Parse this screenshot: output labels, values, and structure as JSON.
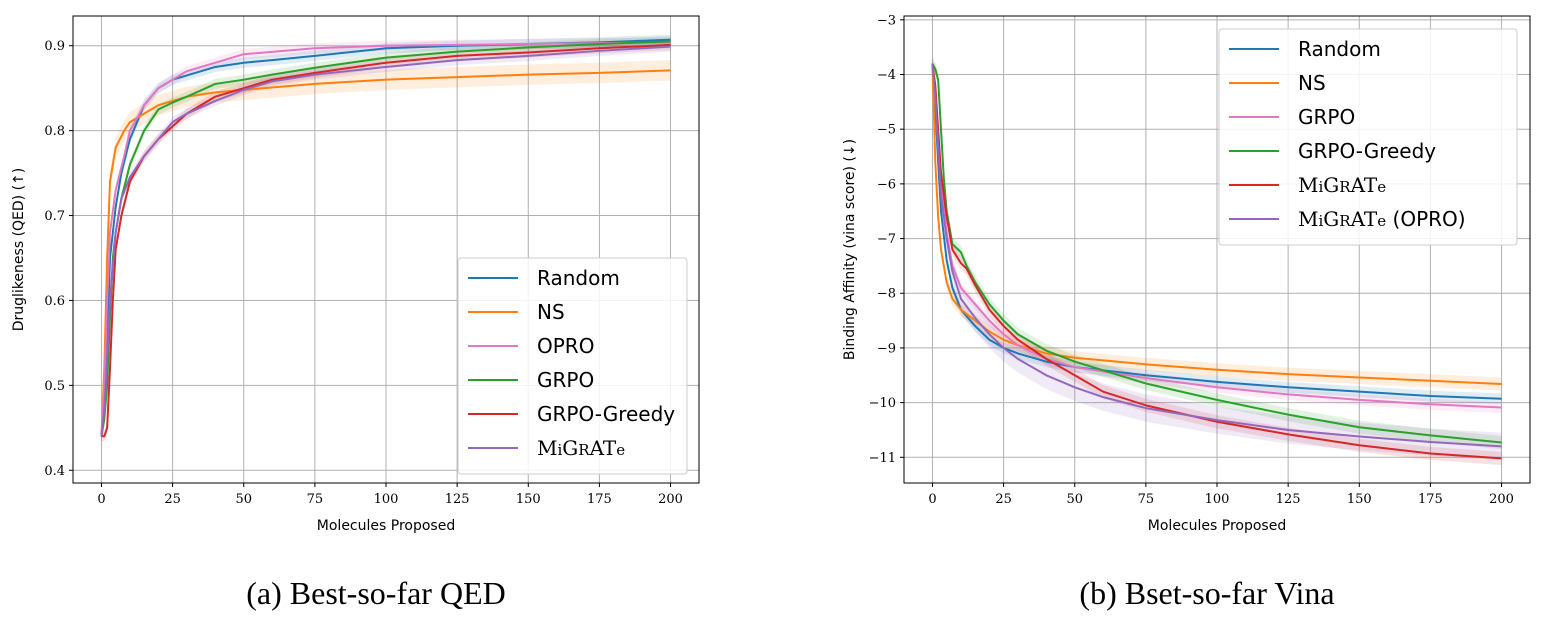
{
  "chart_data": [
    {
      "type": "line",
      "caption": "(a) Best-so-far QED",
      "xlabel": "Molecules Proposed",
      "ylabel": "Druglikeness (QED) (↑)",
      "xlim": [
        -10,
        210
      ],
      "ylim": [
        0.385,
        0.935
      ],
      "xticks": [
        0,
        25,
        50,
        75,
        100,
        125,
        150,
        175,
        200
      ],
      "yticks": [
        0.4,
        0.5,
        0.6,
        0.7,
        0.8,
        0.9
      ],
      "grid": true,
      "legend_position": "lower-right",
      "series": [
        {
          "name": "Random",
          "color": "#1f77b4",
          "band": 0.006,
          "points": [
            [
              0,
              0.44
            ],
            [
              1,
              0.47
            ],
            [
              2,
              0.55
            ],
            [
              3,
              0.65
            ],
            [
              5,
              0.71
            ],
            [
              7,
              0.75
            ],
            [
              10,
              0.79
            ],
            [
              15,
              0.83
            ],
            [
              20,
              0.85
            ],
            [
              25,
              0.86
            ],
            [
              30,
              0.865
            ],
            [
              40,
              0.875
            ],
            [
              50,
              0.88
            ],
            [
              60,
              0.883
            ],
            [
              75,
              0.888
            ],
            [
              100,
              0.897
            ],
            [
              125,
              0.9
            ],
            [
              150,
              0.902
            ],
            [
              175,
              0.904
            ],
            [
              200,
              0.907
            ]
          ]
        },
        {
          "name": "NS",
          "color": "#ff7f0e",
          "band": 0.012,
          "points": [
            [
              0,
              0.44
            ],
            [
              1,
              0.52
            ],
            [
              2,
              0.65
            ],
            [
              3,
              0.74
            ],
            [
              5,
              0.78
            ],
            [
              8,
              0.8
            ],
            [
              10,
              0.81
            ],
            [
              15,
              0.82
            ],
            [
              20,
              0.83
            ],
            [
              25,
              0.835
            ],
            [
              30,
              0.84
            ],
            [
              40,
              0.845
            ],
            [
              50,
              0.848
            ],
            [
              75,
              0.855
            ],
            [
              100,
              0.86
            ],
            [
              125,
              0.863
            ],
            [
              150,
              0.866
            ],
            [
              175,
              0.868
            ],
            [
              200,
              0.871
            ]
          ]
        },
        {
          "name": "OPRO",
          "color": "#e377c2",
          "band": 0.006,
          "points": [
            [
              0,
              0.44
            ],
            [
              1,
              0.5
            ],
            [
              2,
              0.6
            ],
            [
              3,
              0.68
            ],
            [
              5,
              0.73
            ],
            [
              8,
              0.77
            ],
            [
              10,
              0.8
            ],
            [
              15,
              0.83
            ],
            [
              20,
              0.85
            ],
            [
              25,
              0.86
            ],
            [
              30,
              0.87
            ],
            [
              40,
              0.88
            ],
            [
              50,
              0.89
            ],
            [
              75,
              0.897
            ],
            [
              100,
              0.9
            ],
            [
              125,
              0.901
            ],
            [
              150,
              0.902
            ],
            [
              175,
              0.903
            ],
            [
              200,
              0.904
            ]
          ]
        },
        {
          "name": "GRPO",
          "color": "#2ca02c",
          "band": 0.006,
          "points": [
            [
              0,
              0.44
            ],
            [
              1,
              0.46
            ],
            [
              2,
              0.5
            ],
            [
              3,
              0.58
            ],
            [
              4,
              0.65
            ],
            [
              5,
              0.68
            ],
            [
              7,
              0.72
            ],
            [
              10,
              0.76
            ],
            [
              15,
              0.8
            ],
            [
              20,
              0.825
            ],
            [
              25,
              0.833
            ],
            [
              30,
              0.84
            ],
            [
              40,
              0.855
            ],
            [
              50,
              0.86
            ],
            [
              60,
              0.866
            ],
            [
              75,
              0.874
            ],
            [
              100,
              0.886
            ],
            [
              125,
              0.893
            ],
            [
              150,
              0.898
            ],
            [
              175,
              0.902
            ],
            [
              200,
              0.905
            ]
          ]
        },
        {
          "name": "GRPO-Greedy",
          "color": "#d62728",
          "band": 0.006,
          "points": [
            [
              0,
              0.44
            ],
            [
              1,
              0.44
            ],
            [
              2,
              0.45
            ],
            [
              3,
              0.52
            ],
            [
              4,
              0.6
            ],
            [
              5,
              0.66
            ],
            [
              7,
              0.7
            ],
            [
              10,
              0.74
            ],
            [
              15,
              0.77
            ],
            [
              20,
              0.79
            ],
            [
              25,
              0.805
            ],
            [
              30,
              0.82
            ],
            [
              40,
              0.84
            ],
            [
              50,
              0.85
            ],
            [
              60,
              0.86
            ],
            [
              75,
              0.868
            ],
            [
              100,
              0.88
            ],
            [
              125,
              0.888
            ],
            [
              150,
              0.892
            ],
            [
              175,
              0.897
            ],
            [
              200,
              0.901
            ]
          ]
        },
        {
          "name": "MiGRATe",
          "color": "#9467bd",
          "band": 0.006,
          "points": [
            [
              0,
              0.44
            ],
            [
              1,
              0.47
            ],
            [
              2,
              0.53
            ],
            [
              3,
              0.6
            ],
            [
              5,
              0.68
            ],
            [
              7,
              0.72
            ],
            [
              10,
              0.745
            ],
            [
              15,
              0.77
            ],
            [
              20,
              0.79
            ],
            [
              25,
              0.81
            ],
            [
              30,
              0.82
            ],
            [
              40,
              0.835
            ],
            [
              50,
              0.848
            ],
            [
              60,
              0.858
            ],
            [
              75,
              0.866
            ],
            [
              100,
              0.875
            ],
            [
              125,
              0.883
            ],
            [
              150,
              0.888
            ],
            [
              175,
              0.894
            ],
            [
              200,
              0.899
            ]
          ]
        }
      ]
    },
    {
      "type": "line",
      "caption": "(b) Bset-so-far Vina",
      "xlabel": "Molecules Proposed",
      "ylabel": "Binding Affinity (vina score) (↓)",
      "xlim": [
        -10,
        210
      ],
      "ylim": [
        -11.47,
        -2.93
      ],
      "xticks": [
        0,
        25,
        50,
        75,
        100,
        125,
        150,
        175,
        200
      ],
      "yticks": [
        -3,
        -4,
        -5,
        -6,
        -7,
        -8,
        -9,
        -10,
        -11
      ],
      "grid": true,
      "legend_position": "top-right",
      "series": [
        {
          "name": "Random",
          "color": "#1f77b4",
          "band": 0.1,
          "points": [
            [
              0,
              -3.8
            ],
            [
              1,
              -4.6
            ],
            [
              2,
              -5.6
            ],
            [
              3,
              -6.5
            ],
            [
              5,
              -7.4
            ],
            [
              7,
              -7.9
            ],
            [
              10,
              -8.3
            ],
            [
              15,
              -8.6
            ],
            [
              20,
              -8.85
            ],
            [
              25,
              -9.0
            ],
            [
              30,
              -9.1
            ],
            [
              40,
              -9.25
            ],
            [
              50,
              -9.35
            ],
            [
              75,
              -9.5
            ],
            [
              100,
              -9.62
            ],
            [
              125,
              -9.72
            ],
            [
              150,
              -9.8
            ],
            [
              175,
              -9.88
            ],
            [
              200,
              -9.93
            ]
          ]
        },
        {
          "name": "NS",
          "color": "#ff7f0e",
          "band": 0.12,
          "points": [
            [
              0,
              -3.8
            ],
            [
              1,
              -5.6
            ],
            [
              2,
              -6.6
            ],
            [
              3,
              -7.2
            ],
            [
              5,
              -7.8
            ],
            [
              7,
              -8.1
            ],
            [
              10,
              -8.3
            ],
            [
              15,
              -8.5
            ],
            [
              20,
              -8.7
            ],
            [
              25,
              -8.85
            ],
            [
              30,
              -8.95
            ],
            [
              40,
              -9.1
            ],
            [
              50,
              -9.18
            ],
            [
              75,
              -9.3
            ],
            [
              100,
              -9.4
            ],
            [
              125,
              -9.48
            ],
            [
              150,
              -9.54
            ],
            [
              175,
              -9.6
            ],
            [
              200,
              -9.66
            ]
          ]
        },
        {
          "name": "GRPO",
          "color": "#e377c2",
          "band": 0.1,
          "points": [
            [
              0,
              -3.8
            ],
            [
              1,
              -4.4
            ],
            [
              2,
              -5.3
            ],
            [
              3,
              -6.0
            ],
            [
              5,
              -6.9
            ],
            [
              7,
              -7.5
            ],
            [
              10,
              -7.9
            ],
            [
              15,
              -8.2
            ],
            [
              20,
              -8.5
            ],
            [
              25,
              -8.75
            ],
            [
              30,
              -8.95
            ],
            [
              40,
              -9.2
            ],
            [
              50,
              -9.35
            ],
            [
              75,
              -9.55
            ],
            [
              100,
              -9.72
            ],
            [
              125,
              -9.85
            ],
            [
              150,
              -9.95
            ],
            [
              175,
              -10.03
            ],
            [
              200,
              -10.09
            ]
          ]
        },
        {
          "name": "GRPO-Greedy",
          "color": "#2ca02c",
          "band": 0.12,
          "points": [
            [
              0,
              -3.8
            ],
            [
              1,
              -3.9
            ],
            [
              2,
              -4.1
            ],
            [
              3,
              -5.0
            ],
            [
              4,
              -5.9
            ],
            [
              5,
              -6.5
            ],
            [
              7,
              -7.1
            ],
            [
              10,
              -7.25
            ],
            [
              12,
              -7.5
            ],
            [
              15,
              -7.8
            ],
            [
              20,
              -8.2
            ],
            [
              25,
              -8.5
            ],
            [
              30,
              -8.75
            ],
            [
              40,
              -9.05
            ],
            [
              50,
              -9.25
            ],
            [
              75,
              -9.65
            ],
            [
              100,
              -9.95
            ],
            [
              125,
              -10.22
            ],
            [
              150,
              -10.45
            ],
            [
              175,
              -10.6
            ],
            [
              200,
              -10.73
            ]
          ]
        },
        {
          "name": "MiGRATe",
          "color": "#d62728",
          "band": 0.12,
          "points": [
            [
              0,
              -3.8
            ],
            [
              1,
              -4.2
            ],
            [
              2,
              -5.0
            ],
            [
              3,
              -5.8
            ],
            [
              5,
              -6.6
            ],
            [
              7,
              -7.2
            ],
            [
              10,
              -7.45
            ],
            [
              12,
              -7.55
            ],
            [
              15,
              -7.85
            ],
            [
              20,
              -8.3
            ],
            [
              25,
              -8.6
            ],
            [
              30,
              -8.85
            ],
            [
              40,
              -9.2
            ],
            [
              50,
              -9.5
            ],
            [
              60,
              -9.8
            ],
            [
              75,
              -10.05
            ],
            [
              100,
              -10.35
            ],
            [
              125,
              -10.58
            ],
            [
              150,
              -10.78
            ],
            [
              175,
              -10.93
            ],
            [
              200,
              -11.02
            ]
          ]
        },
        {
          "name": "MiGRATe (OPRO)",
          "color": "#9467bd",
          "band": 0.25,
          "points": [
            [
              0,
              -3.8
            ],
            [
              1,
              -4.4
            ],
            [
              2,
              -5.3
            ],
            [
              3,
              -6.2
            ],
            [
              5,
              -7.0
            ],
            [
              7,
              -7.6
            ],
            [
              10,
              -8.1
            ],
            [
              15,
              -8.45
            ],
            [
              20,
              -8.75
            ],
            [
              25,
              -9.0
            ],
            [
              30,
              -9.2
            ],
            [
              40,
              -9.5
            ],
            [
              50,
              -9.72
            ],
            [
              60,
              -9.9
            ],
            [
              75,
              -10.1
            ],
            [
              100,
              -10.32
            ],
            [
              125,
              -10.5
            ],
            [
              150,
              -10.62
            ],
            [
              175,
              -10.72
            ],
            [
              200,
              -10.8
            ]
          ]
        }
      ]
    }
  ]
}
